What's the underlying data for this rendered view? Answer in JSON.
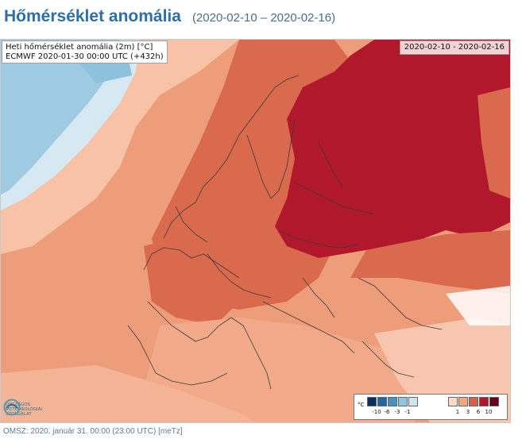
{
  "header": {
    "title": "Hőmérséklet anomália",
    "subtitle": "(2020-02-10 – 2020-02-16)"
  },
  "map": {
    "info_line1": "Heti hőmérséklet anomália (2m) [°C]",
    "info_line2": "ECMWF 2020-01-30 00:00 UTC (+432h)",
    "date_range": "2020-02-10 - 2020-02-16",
    "logo_text": [
      "ORSZÁGOS",
      "METEOROLÓGIAI",
      "SZOLGÁLAT"
    ],
    "colors": {
      "strong_warm": "#b2182b",
      "warm": "#d6604d",
      "mild_warm": "#f4a582",
      "light_warm": "#fddbc7",
      "light_cold": "#d1e5f0",
      "cold": "#92c5de",
      "border": "#3a3a3a"
    }
  },
  "legend": {
    "unit": "°C",
    "cold_ticks": [
      "-10",
      "-6",
      "-3",
      "-1"
    ],
    "warm_ticks": [
      "1",
      "3",
      "6",
      "10"
    ],
    "cold_colors": [
      "#053061",
      "#2166ac",
      "#4393c3",
      "#92c5de",
      "#d1e5f0"
    ],
    "warm_colors": [
      "#fddbc7",
      "#f4a582",
      "#d6604d",
      "#b2182b",
      "#67001f"
    ]
  },
  "footer": {
    "text": "OMSZ: 2020. január 31. 00:00 (23:00  UTC)  [meTz]"
  }
}
